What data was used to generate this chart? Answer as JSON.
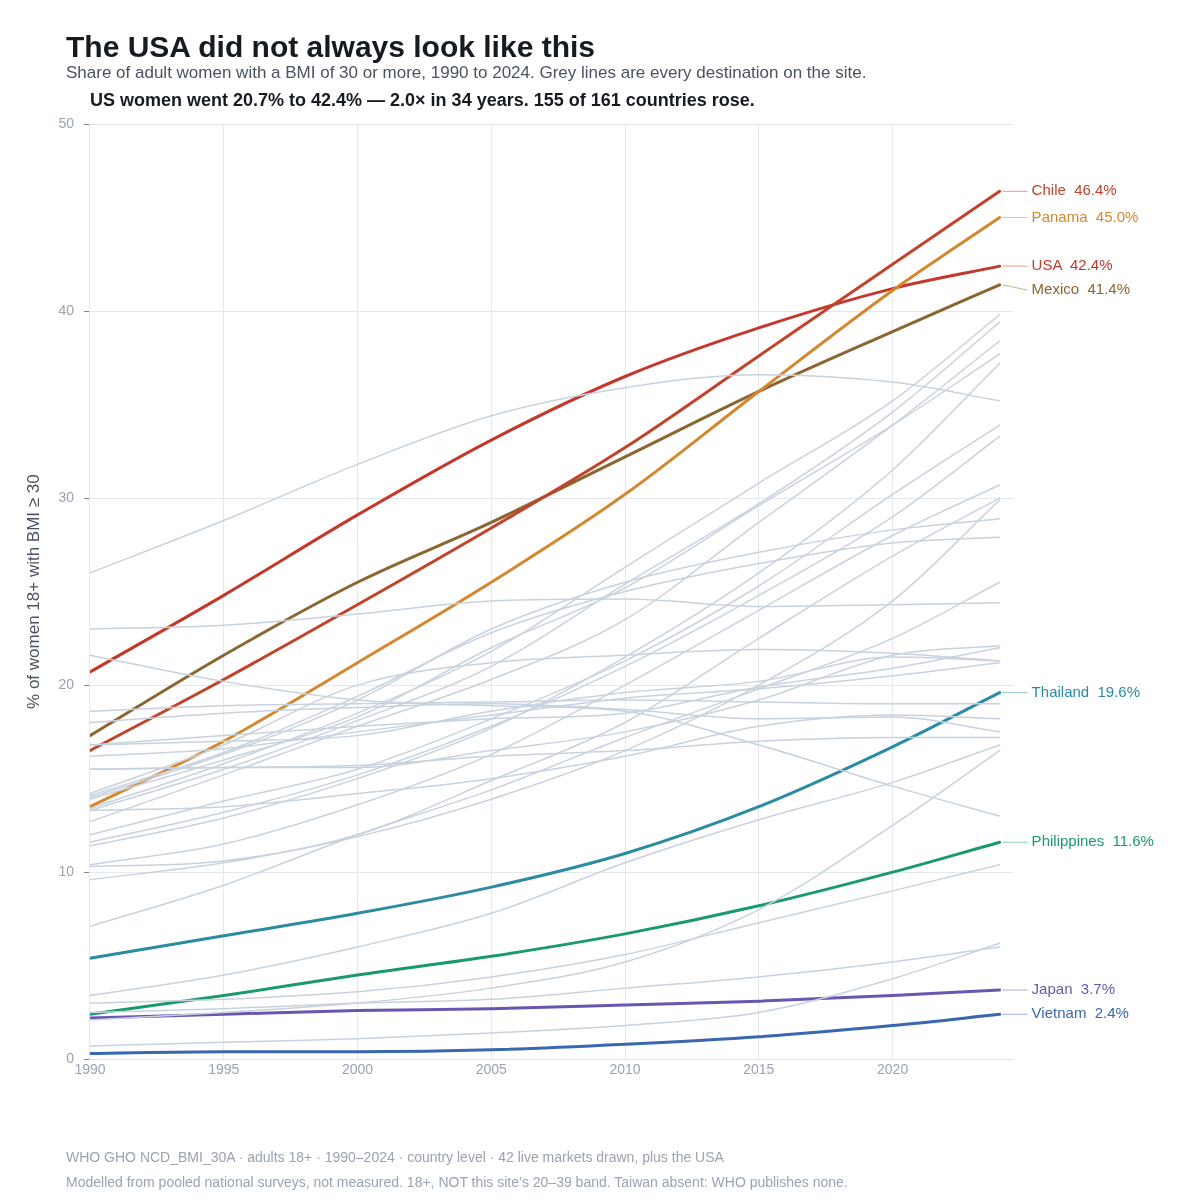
{
  "chart_data": {
    "type": "line",
    "title": "The USA did not always look like this",
    "subtitle": "Share of adult women with a BMI of 30 or more, 1990 to 2024. Grey lines are every destination on the site.",
    "ylabel": "% of women 18+ with BMI ≥ 30",
    "annotations": [
      "US women went 20.7% to 42.4% — 2.0× in 34 years. 155 of 161 countries rose.",
      "WHO GHO NCD_BMI_30A · adults 18+ · 1990–2024 · country level · 42 live markets drawn, plus the USA",
      "Modelled from pooled national surveys, not measured. 18+, NOT this site’s 20–39 band. Taiwan absent: WHO publishes none."
    ],
    "x": [
      1990,
      1995,
      2000,
      2005,
      2010,
      2015,
      2020,
      2024
    ],
    "xlim": [
      1990,
      2024.5
    ],
    "xticks": [
      1990,
      1995,
      2000,
      2005,
      2010,
      2015,
      2020
    ],
    "ylim": [
      0,
      50
    ],
    "yticks": [
      0,
      10,
      20,
      30,
      40,
      50
    ],
    "grid": true,
    "legend": false,
    "marker": "none",
    "line_style": "solid",
    "series": [
      {
        "color": "#c8d2de",
        "values": [
          26.0,
          28.8,
          31.8,
          34.4,
          35.9,
          36.6,
          36.2,
          35.2
        ]
      },
      {
        "color": "#c8d2de",
        "values": [
          23.0,
          23.2,
          23.8,
          24.5,
          24.6,
          24.2,
          24.3,
          24.4
        ]
      },
      {
        "color": "#c8d2de",
        "values": [
          21.6,
          20.2,
          19.2,
          18.9,
          18.6,
          16.8,
          14.6,
          13.0
        ]
      },
      {
        "color": "#c8d2de",
        "values": [
          18.6,
          18.9,
          19.0,
          19.1,
          19.2,
          19.1,
          19.0,
          19.0
        ]
      },
      {
        "color": "#c8d2de",
        "values": [
          18.0,
          18.5,
          18.8,
          19.0,
          18.7,
          18.2,
          18.3,
          17.5
        ]
      },
      {
        "color": "#c8d2de",
        "values": [
          16.8,
          17.0,
          17.3,
          18.6,
          19.6,
          20.2,
          21.5,
          21.3
        ]
      },
      {
        "color": "#c8d2de",
        "values": [
          16.2,
          16.6,
          17.5,
          18.4,
          19.3,
          19.8,
          20.5,
          21.2
        ]
      },
      {
        "color": "#c8d2de",
        "values": [
          15.5,
          15.6,
          15.6,
          16.5,
          17.5,
          19.2,
          21.6,
          22.1
        ]
      },
      {
        "color": "#c8d2de",
        "values": [
          14.2,
          16.8,
          20.0,
          21.2,
          21.6,
          21.9,
          21.7,
          21.3
        ]
      },
      {
        "color": "#c8d2de",
        "values": [
          14.1,
          16.4,
          19.4,
          22.8,
          25.0,
          26.5,
          27.6,
          27.9
        ]
      },
      {
        "color": "#c8d2de",
        "values": [
          14.0,
          16.3,
          19.2,
          23.0,
          25.5,
          27.1,
          28.3,
          28.9
        ]
      },
      {
        "color": "#c8d2de",
        "values": [
          13.9,
          16.0,
          18.3,
          22.0,
          25.2,
          29.6,
          33.9,
          37.7
        ]
      },
      {
        "color": "#c8d2de",
        "values": [
          13.4,
          15.8,
          18.5,
          21.8,
          26.3,
          30.8,
          35.2,
          39.8
        ]
      },
      {
        "color": "#c8d2de",
        "values": [
          13.3,
          15.5,
          18.1,
          21.0,
          25.4,
          29.7,
          34.6,
          39.4
        ]
      },
      {
        "color": "#c8d2de",
        "values": [
          12.7,
          15.2,
          17.8,
          20.3,
          23.5,
          28.7,
          33.9,
          38.4
        ]
      },
      {
        "color": "#c8d2de",
        "values": [
          12.0,
          13.8,
          15.5,
          18.2,
          21.3,
          25.3,
          30.2,
          33.9
        ]
      },
      {
        "color": "#c8d2de",
        "values": [
          11.6,
          13.2,
          15.2,
          17.8,
          21.0,
          24.8,
          29.0,
          33.3
        ]
      },
      {
        "color": "#c8d2de",
        "values": [
          11.4,
          12.9,
          15.0,
          17.7,
          21.5,
          26.0,
          31.5,
          37.2
        ]
      },
      {
        "color": "#c8d2de",
        "values": [
          10.4,
          11.5,
          13.6,
          16.3,
          20.0,
          24.0,
          28.0,
          30.7
        ]
      },
      {
        "color": "#c8d2de",
        "values": [
          10.3,
          10.6,
          12.0,
          14.9,
          18.0,
          22.5,
          26.9,
          30.0
        ]
      },
      {
        "color": "#c8d2de",
        "values": [
          9.6,
          10.5,
          11.9,
          13.9,
          16.5,
          20.0,
          24.5,
          29.9
        ]
      },
      {
        "color": "#c8d2de",
        "values": [
          7.1,
          9.3,
          12.0,
          14.4,
          17.2,
          19.8,
          22.5,
          25.5
        ]
      },
      {
        "color": "#c8d2de",
        "values": [
          16.8,
          17.3,
          17.8,
          18.2,
          18.5,
          19.9,
          20.9,
          22.0
        ]
      },
      {
        "color": "#c8d2de",
        "values": [
          15.5,
          15.6,
          15.7,
          16.2,
          16.5,
          17.0,
          17.2,
          17.2
        ]
      },
      {
        "color": "#c8d2de",
        "values": [
          13.3,
          13.5,
          14.2,
          15.0,
          16.2,
          17.8,
          18.4,
          18.2
        ]
      },
      {
        "color": "#c8d2de",
        "values": [
          3.4,
          4.5,
          6.0,
          7.8,
          10.5,
          12.8,
          14.8,
          16.8
        ]
      },
      {
        "color": "#c8d2de",
        "values": [
          2.1,
          2.5,
          3.0,
          3.8,
          5.2,
          8.0,
          12.5,
          16.5
        ]
      },
      {
        "color": "#c8d2de",
        "values": [
          3.0,
          3.2,
          3.6,
          4.4,
          5.6,
          7.3,
          9.0,
          10.4
        ]
      },
      {
        "color": "#c8d2de",
        "values": [
          0.7,
          0.9,
          1.1,
          1.4,
          1.8,
          2.5,
          4.3,
          6.2
        ]
      },
      {
        "color": "#c8d2de",
        "values": [
          2.5,
          2.7,
          3.0,
          3.2,
          3.8,
          4.4,
          5.2,
          6.0
        ]
      },
      {
        "name": "Chile",
        "color": "#c0432a",
        "values": [
          16.5,
          20.3,
          24.3,
          28.4,
          32.7,
          37.6,
          42.5,
          46.4
        ],
        "value_labels": [
          null,
          null,
          null,
          null,
          null,
          null,
          null,
          "46.4%"
        ]
      },
      {
        "name": "Panama",
        "color": "#d4872e",
        "values": [
          13.5,
          17.0,
          21.2,
          25.5,
          30.2,
          35.7,
          41.1,
          45.0
        ],
        "value_labels": [
          null,
          null,
          null,
          null,
          null,
          null,
          null,
          "45.0%"
        ]
      },
      {
        "name": "Mexico",
        "color": "#8a6632",
        "values": [
          17.3,
          21.6,
          25.5,
          28.7,
          32.2,
          35.7,
          38.9,
          41.4
        ],
        "value_labels": [
          null,
          null,
          null,
          null,
          null,
          null,
          null,
          "41.4%"
        ]
      },
      {
        "name": "Thailand",
        "color": "#2a8ba3",
        "values": [
          5.4,
          6.6,
          7.8,
          9.2,
          11.0,
          13.5,
          16.7,
          19.6
        ],
        "value_labels": [
          null,
          null,
          null,
          null,
          null,
          null,
          null,
          "19.6%"
        ]
      },
      {
        "name": "Philippines",
        "color": "#1a9a6c",
        "values": [
          2.4,
          3.4,
          4.5,
          5.5,
          6.7,
          8.2,
          10.0,
          11.6
        ],
        "value_labels": [
          null,
          null,
          null,
          null,
          null,
          null,
          null,
          "11.6%"
        ]
      },
      {
        "name": "Japan",
        "color": "#6a56b0",
        "values": [
          2.2,
          2.4,
          2.6,
          2.7,
          2.9,
          3.1,
          3.4,
          3.7
        ],
        "value_labels": [
          null,
          null,
          null,
          null,
          null,
          null,
          null,
          "3.7%"
        ]
      },
      {
        "name": "Vietnam",
        "color": "#3a68b0",
        "values": [
          0.3,
          0.4,
          0.4,
          0.5,
          0.8,
          1.2,
          1.8,
          2.4
        ],
        "value_labels": [
          null,
          null,
          null,
          null,
          null,
          null,
          null,
          "2.4%"
        ]
      },
      {
        "name": "USA",
        "color": "#c4382c",
        "values": [
          20.7,
          24.8,
          29.1,
          33.1,
          36.5,
          39.1,
          41.2,
          42.4
        ],
        "value_labels": [
          null,
          null,
          null,
          null,
          null,
          null,
          null,
          "42.4%"
        ]
      }
    ]
  }
}
